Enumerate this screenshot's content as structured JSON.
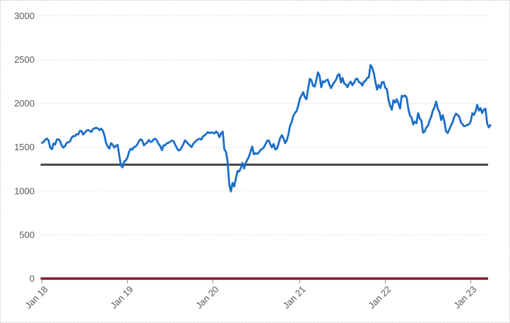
{
  "window": {
    "background": "#ffffff",
    "frame_border_color": "#c6c6c6"
  },
  "chart_data": {
    "type": "line",
    "title": "",
    "xlabel": "",
    "ylabel": "",
    "legend": "none",
    "grid": "horizontal-dotted",
    "gridline_color": "#d4d4d4",
    "axis_text_color": "#595959",
    "tick_mark_color": "#8c8c8c",
    "ylim": [
      0,
      3000
    ],
    "y_ticks": [
      0,
      500,
      1000,
      1500,
      2000,
      2500,
      3000
    ],
    "x_tick_labels": [
      "Jan 18",
      "Jan 19",
      "Jan 20",
      "Jan 21",
      "Jan 22",
      "Jan 23"
    ],
    "x_tick_week_positions": [
      0,
      52,
      104,
      157,
      209,
      261
    ],
    "points_per_year": 52,
    "series": [
      {
        "name": "index-price",
        "type": "line",
        "color": "#1b6ec8",
        "values": [
          1550,
          1560,
          1586,
          1598,
          1575,
          1494,
          1477,
          1543,
          1530,
          1587,
          1590,
          1570,
          1516,
          1495,
          1513,
          1549,
          1556,
          1564,
          1607,
          1627,
          1626,
          1648,
          1645,
          1684,
          1686,
          1643,
          1665,
          1687,
          1697,
          1686,
          1673,
          1706,
          1716,
          1722,
          1713,
          1696,
          1712,
          1690,
          1632,
          1546,
          1508,
          1483,
          1547,
          1527,
          1495,
          1517,
          1526,
          1410,
          1292,
          1270,
          1337,
          1349,
          1380,
          1447,
          1482,
          1473,
          1502,
          1507,
          1532,
          1569,
          1590,
          1579,
          1521,
          1539,
          1553,
          1582,
          1560,
          1565,
          1591,
          1596,
          1572,
          1535,
          1514,
          1465,
          1522,
          1523,
          1546,
          1550,
          1562,
          1575,
          1570,
          1533,
          1493,
          1463,
          1469,
          1495,
          1533,
          1578,
          1560,
          1539,
          1520,
          1500,
          1535,
          1559,
          1576,
          1589,
          1597,
          1588,
          1625,
          1634,
          1652,
          1672,
          1662,
          1668,
          1664,
          1658,
          1678,
          1662,
          1614,
          1656,
          1679,
          1476,
          1449,
          1336,
          1074,
          995,
          1092,
          1052,
          1139,
          1229,
          1222,
          1260,
          1320,
          1256,
          1320,
          1355,
          1394,
          1452,
          1507,
          1418,
          1432,
          1423,
          1440,
          1468,
          1480,
          1496,
          1532,
          1570,
          1579,
          1532,
          1497,
          1537,
          1475,
          1483,
          1538,
          1603,
          1637,
          1603,
          1545,
          1577,
          1645,
          1744,
          1785,
          1855,
          1892,
          1912,
          1975,
          2053,
          2092,
          2129,
          2071,
          2047,
          2166,
          2279,
          2266,
          2201,
          2192,
          2266,
          2354,
          2317,
          2184,
          2253,
          2243,
          2263,
          2271,
          2212,
          2174,
          2215,
          2243,
          2269,
          2321,
          2335,
          2238,
          2290,
          2226,
          2216,
          2185,
          2227,
          2248,
          2208,
          2236,
          2278,
          2282,
          2241,
          2236,
          2204,
          2248,
          2258,
          2291,
          2297,
          2437,
          2411,
          2343,
          2246,
          2159,
          2212,
          2174,
          2242,
          2245,
          2179,
          2162,
          2038,
          1968,
          1927,
          2037,
          2009,
          2048,
          2001,
          1942,
          2086,
          2078,
          2091,
          2067,
          1941,
          1862,
          1840,
          1760,
          1793,
          1774,
          1888,
          1830,
          1800,
          1666,
          1678,
          1727,
          1744,
          1806,
          1848,
          1922,
          1957,
          2021,
          1936,
          1900,
          1810,
          1864,
          1792,
          1680,
          1662,
          1702,
          1748,
          1786,
          1846,
          1883,
          1869,
          1850,
          1786,
          1763,
          1738,
          1745,
          1755,
          1761,
          1792,
          1887,
          1867,
          1911,
          1985,
          1918,
          1946,
          1890,
          1928,
          1940,
          1772,
          1726,
          1752
        ]
      },
      {
        "name": "reference-level",
        "type": "hline",
        "color": "#474747",
        "value": 1300
      },
      {
        "name": "zero-baseline",
        "type": "hline",
        "color": "#8a1a2e",
        "value": 0
      }
    ]
  }
}
